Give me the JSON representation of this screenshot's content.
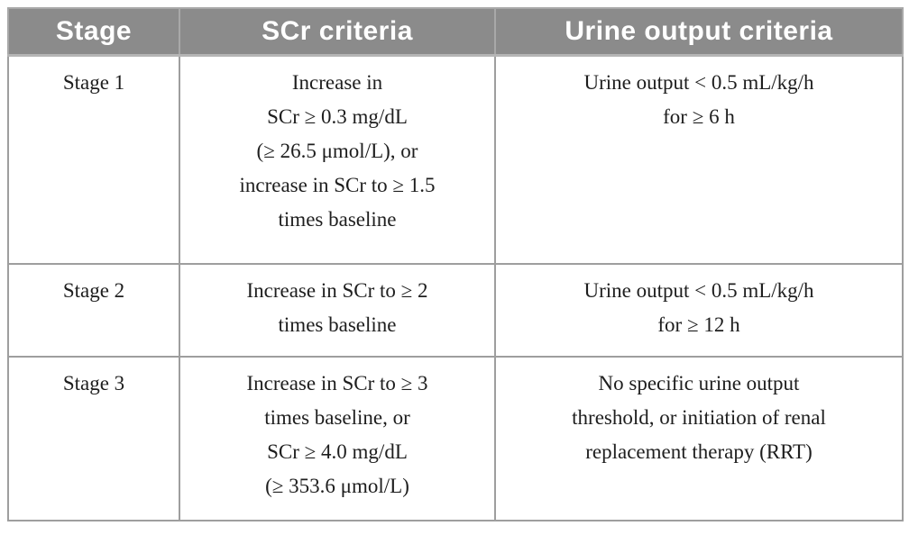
{
  "colors": {
    "header_bg": "#8b8b8b",
    "header_text": "#ffffff",
    "border": "#9e9e9e",
    "body_text": "#1e1e1e",
    "page_bg": "#ffffff"
  },
  "table": {
    "columns": [
      "Stage",
      "SCr criteria",
      "Urine output criteria"
    ],
    "rows": [
      {
        "stage": "Stage 1",
        "scr": "Increase in\nSCr ≥ 0.3 mg/dL\n(≥ 26.5 μmol/L), or\nincrease in SCr to ≥ 1.5\ntimes baseline",
        "urine": "Urine output < 0.5 mL/kg/h\nfor ≥ 6 h"
      },
      {
        "stage": "Stage 2",
        "scr": "Increase in SCr to ≥ 2\ntimes baseline",
        "urine": "Urine output < 0.5 mL/kg/h\nfor ≥ 12 h"
      },
      {
        "stage": "Stage 3",
        "scr": "Increase in SCr to ≥ 3\ntimes baseline, or\nSCr ≥ 4.0 mg/dL\n(≥ 353.6 μmol/L)",
        "urine": "No specific urine output\nthreshold, or initiation of renal\nreplacement therapy (RRT)"
      }
    ]
  }
}
